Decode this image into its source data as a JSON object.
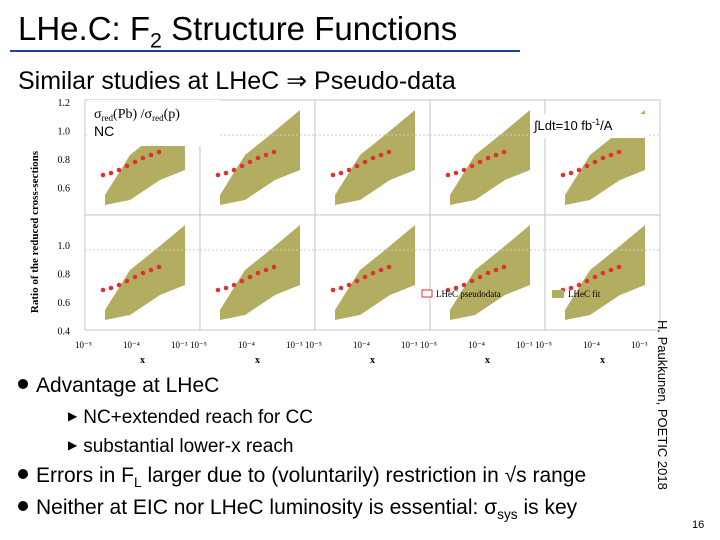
{
  "title": {
    "before": "LHe.C: F",
    "sub": "2",
    "after": " Structure Functions"
  },
  "subtitle": "Similar studies at LHeC ⇒ Pseudo-data",
  "figure": {
    "ratio_label": {
      "a": "σ",
      "a_sub": "red",
      "b": "(Pb) /σ",
      "b_sub": "red",
      "c": "(p)"
    },
    "nc_label": "NC",
    "lumi_label": {
      "before": "∫Ldt=10 fb",
      "sup": "-1",
      "after": "/A"
    },
    "ylabel": "Ratio of the reduced cross-sections",
    "xlabel": "x",
    "yticks_top": [
      "1.2",
      "1.0",
      "0.8",
      "0.6"
    ],
    "yticks_bottom": [
      "1.0",
      "0.8",
      "0.6",
      "0.4"
    ],
    "xticks": [
      "10⁻⁵",
      "10⁻⁴",
      "10⁻³"
    ],
    "legend": [
      "LHeC pseudodata",
      "LHeC fit"
    ]
  },
  "credit": "H. Paukkunen, POETIC 2018",
  "bullets": [
    {
      "text": "Advantage at LHeC"
    },
    {
      "text": "NC+extended reach for CC",
      "level": 2
    },
    {
      "text": "substantial lower-x reach",
      "level": 2
    },
    {
      "text": {
        "a": "Errors in F",
        "a_sub": "L",
        "b": " larger due to (voluntarily) restriction in √s range"
      }
    },
    {
      "text": {
        "a": "Neither at EIC nor LHeC luminosity is essential: σ",
        "a_sub": "sys",
        "b": " is key"
      }
    }
  ],
  "page_number": "16"
}
